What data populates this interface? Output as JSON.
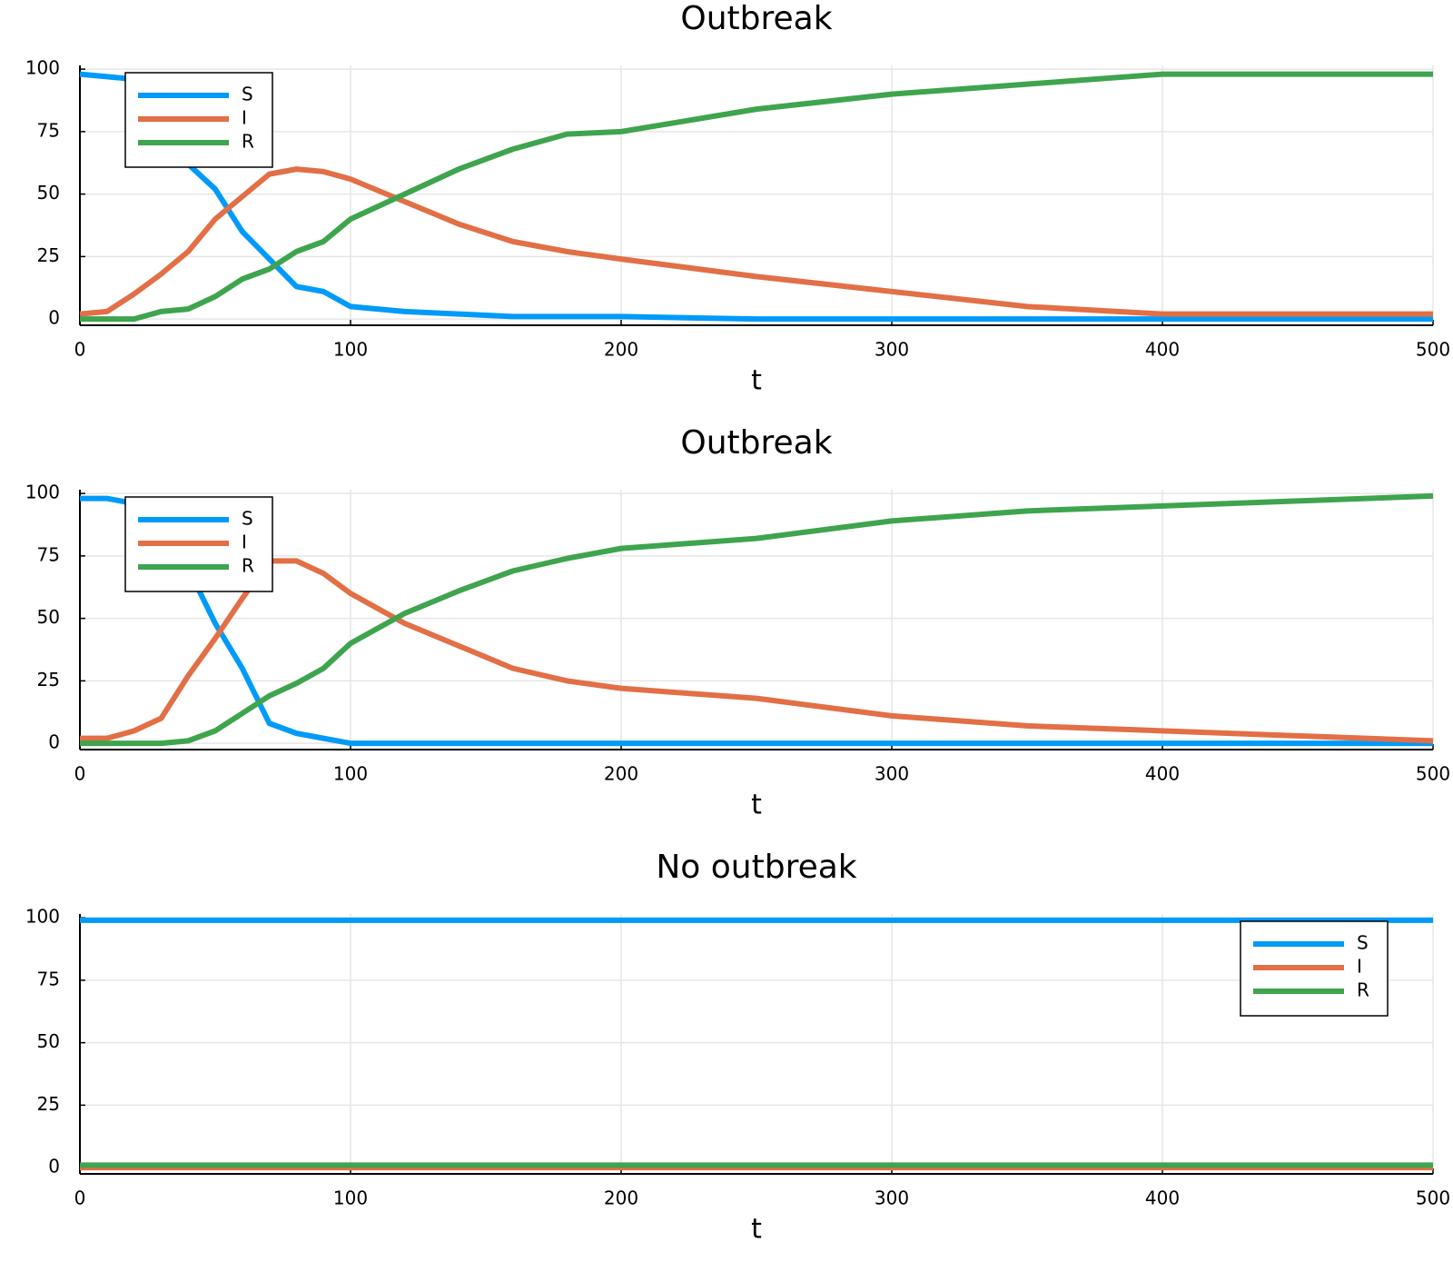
{
  "chart_data": [
    {
      "type": "line",
      "title": "Outbreak",
      "x_label": "t",
      "x": [
        0,
        10,
        20,
        30,
        40,
        50,
        60,
        70,
        80,
        90,
        100,
        120,
        140,
        160,
        180,
        200,
        250,
        300,
        350,
        400,
        450,
        500
      ],
      "series": [
        {
          "name": "S",
          "color": "#009af9",
          "values": [
            98,
            97,
            96,
            80,
            62,
            52,
            35,
            24,
            13,
            11,
            5,
            3,
            2,
            1,
            1,
            1,
            0,
            0,
            0,
            0,
            0,
            0
          ]
        },
        {
          "name": "I",
          "color": "#e26f46",
          "values": [
            2,
            3,
            10,
            18,
            27,
            40,
            49,
            58,
            60,
            59,
            56,
            47,
            38,
            31,
            27,
            24,
            17,
            11,
            5,
            2,
            2,
            2
          ]
        },
        {
          "name": "R",
          "color": "#3ea44e",
          "values": [
            0,
            0,
            0,
            3,
            4,
            9,
            16,
            20,
            27,
            31,
            40,
            50,
            60,
            68,
            74,
            75,
            84,
            90,
            94,
            98,
            98,
            98
          ]
        }
      ],
      "xlim": [
        0,
        500
      ],
      "xticks": [
        0,
        100,
        200,
        300,
        400,
        500
      ],
      "ylim": [
        -2.5,
        101.5
      ],
      "yticks": [
        0,
        25,
        50,
        75,
        100
      ],
      "grid": true,
      "legend": "top-left"
    },
    {
      "type": "line",
      "title": "Outbreak",
      "x_label": "t",
      "x": [
        0,
        10,
        20,
        30,
        40,
        50,
        60,
        70,
        80,
        90,
        100,
        120,
        140,
        160,
        180,
        200,
        250,
        300,
        350,
        400,
        450,
        500
      ],
      "series": [
        {
          "name": "S",
          "color": "#009af9",
          "values": [
            98,
            98,
            96,
            88,
            70,
            48,
            30,
            8,
            4,
            2,
            0,
            0,
            0,
            0,
            0,
            0,
            0,
            0,
            0,
            0,
            0,
            0
          ]
        },
        {
          "name": "I",
          "color": "#e26f46",
          "values": [
            2,
            2,
            5,
            10,
            27,
            42,
            58,
            73,
            73,
            68,
            60,
            48,
            39,
            30,
            25,
            22,
            18,
            11,
            7,
            5,
            3,
            1
          ]
        },
        {
          "name": "R",
          "color": "#3ea44e",
          "values": [
            0,
            0,
            0,
            0,
            1,
            5,
            12,
            19,
            24,
            30,
            40,
            52,
            61,
            69,
            74,
            78,
            82,
            89,
            93,
            95,
            97,
            99
          ]
        }
      ],
      "xlim": [
        0,
        500
      ],
      "xticks": [
        0,
        100,
        200,
        300,
        400,
        500
      ],
      "ylim": [
        -2.5,
        101.5
      ],
      "yticks": [
        0,
        25,
        50,
        75,
        100
      ],
      "grid": true,
      "legend": "top-left"
    },
    {
      "type": "line",
      "title": "No outbreak",
      "x_label": "t",
      "x": [
        0,
        500
      ],
      "series": [
        {
          "name": "S",
          "color": "#009af9",
          "values": [
            99,
            99
          ]
        },
        {
          "name": "I",
          "color": "#e26f46",
          "values": [
            0,
            0
          ]
        },
        {
          "name": "R",
          "color": "#3ea44e",
          "values": [
            1,
            1
          ]
        }
      ],
      "xlim": [
        0,
        500
      ],
      "xticks": [
        0,
        100,
        200,
        300,
        400,
        500
      ],
      "ylim": [
        -2.5,
        101.5
      ],
      "yticks": [
        0,
        25,
        50,
        75,
        100
      ],
      "grid": true,
      "legend": "top-right"
    }
  ]
}
